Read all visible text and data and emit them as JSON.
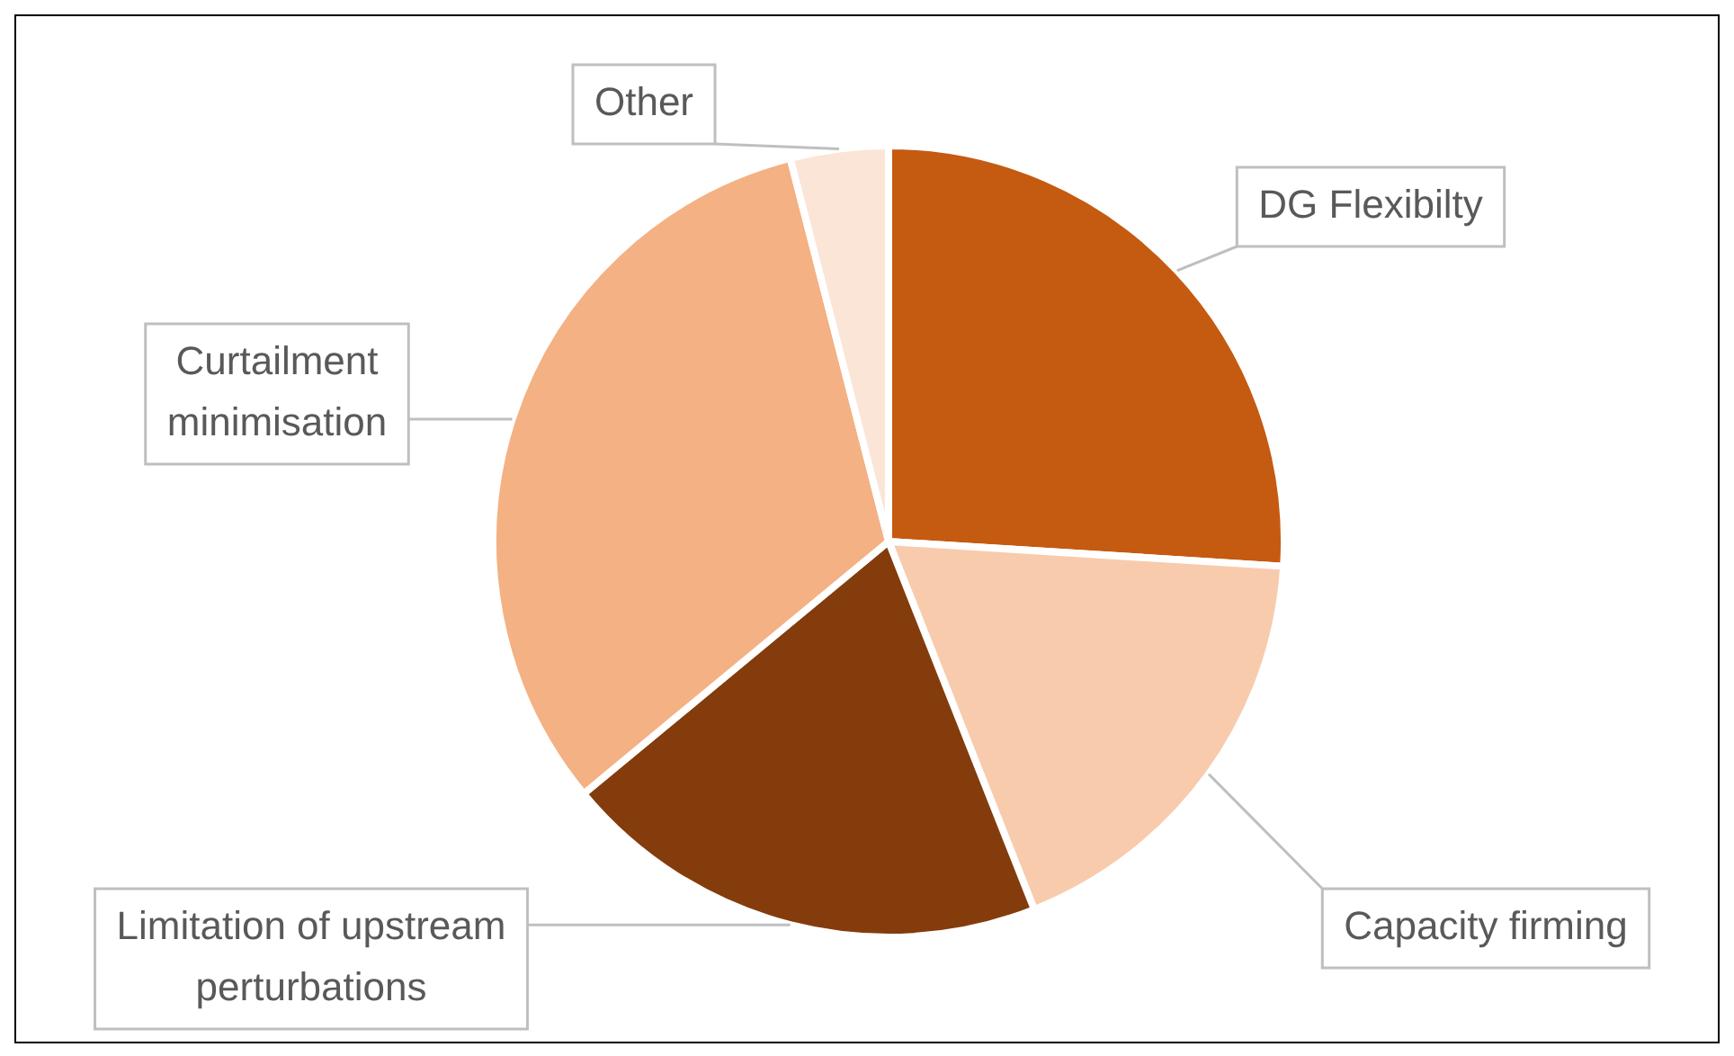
{
  "chart_data": {
    "type": "pie",
    "categories": [
      "DG Flexibilty",
      "Capacity firming",
      "Limitation of upstream perturbations",
      "Curtailment minimisation",
      "Other"
    ],
    "values": [
      26,
      18,
      20,
      32,
      4
    ],
    "colors": [
      "#c55a11",
      "#f8cbad",
      "#843c0c",
      "#f4b183",
      "#fbe5d6"
    ],
    "legend": false
  }
}
